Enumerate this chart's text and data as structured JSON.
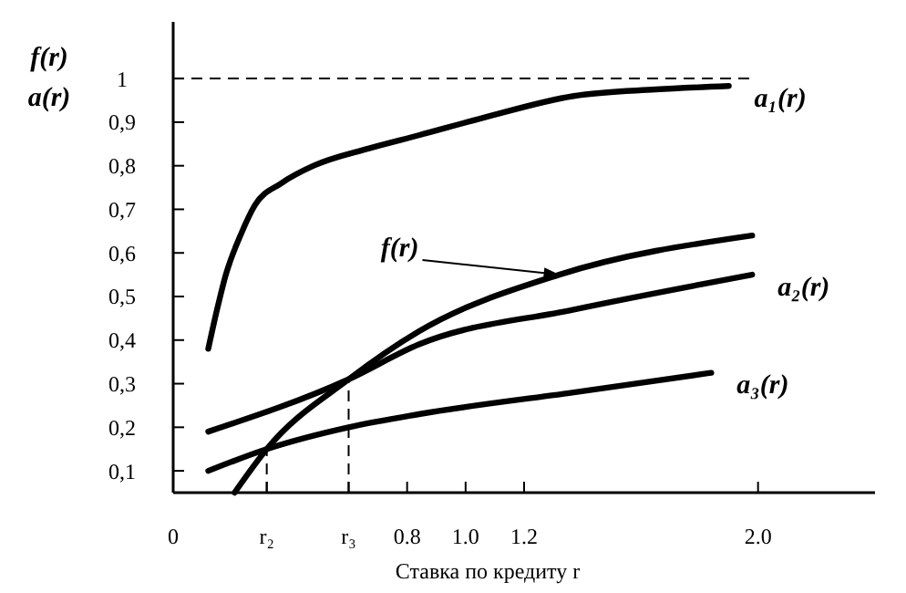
{
  "chart_data": {
    "type": "line",
    "xlabel": "Ставка по кредиту r",
    "ylabel": "f(r)\na(r)",
    "xlim": [
      0,
      2.4
    ],
    "ylim": [
      0.05,
      1.13
    ],
    "xticks": [
      0,
      {
        "value": 0.32,
        "label": "r₂"
      },
      {
        "value": 0.6,
        "label": "r₃"
      },
      0.8,
      {
        "value": 1,
        "label": "1.0"
      },
      1.2,
      {
        "value": 2,
        "label": "2.0"
      }
    ],
    "yticks": [
      {
        "value": 0.1,
        "label": "0,1"
      },
      {
        "value": 0.2,
        "label": "0,2"
      },
      {
        "value": 0.3,
        "label": "0,3"
      },
      {
        "value": 0.4,
        "label": "0,4"
      },
      {
        "value": 0.5,
        "label": "0,5"
      },
      {
        "value": 0.6,
        "label": "0,6"
      },
      {
        "value": 0.7,
        "label": "0,7"
      },
      {
        "value": 0.8,
        "label": "0,8"
      },
      {
        "value": 0.9,
        "label": "0,9"
      },
      1
    ],
    "grid": false,
    "line_style": "solid",
    "marker": "none",
    "ref_lines": [
      {
        "axis": "y",
        "value": 1,
        "line_style": "dashed"
      },
      {
        "axis": "x",
        "value": 0.32,
        "line_style": "dashed"
      },
      {
        "axis": "x",
        "value": 0.6,
        "line_style": "dashed"
      }
    ],
    "annotations": [
      {
        "text": "f(r)",
        "x": 1.32,
        "y": 0.55
      }
    ],
    "series": [
      {
        "name": "a₁(r)",
        "color": "#000000",
        "x": [
          0.12,
          0.15,
          0.18,
          0.23,
          0.28,
          0.37,
          0.48,
          0.67,
          0.84,
          1.06,
          1.37,
          1.65,
          1.9
        ],
        "values": [
          0.38,
          0.47,
          0.55,
          0.64,
          0.71,
          0.76,
          0.8,
          0.84,
          0.87,
          0.91,
          0.96,
          0.975,
          0.983
        ]
      },
      {
        "color": "#000000",
        "x": [
          0.21,
          0.32,
          0.6,
          0.84,
          1.32,
          1.98
        ],
        "values": [
          0.05,
          0.15,
          0.31,
          0.42,
          0.55,
          0.64
        ]
      },
      {
        "name": "a₂(r)",
        "color": "#000000",
        "x": [
          0.12,
          0.6,
          0.84,
          1.37,
          1.98
        ],
        "values": [
          0.19,
          0.31,
          0.39,
          0.47,
          0.55
        ]
      },
      {
        "name": "a₃(r)",
        "color": "#000000",
        "x": [
          0.12,
          0.32,
          0.6,
          0.84,
          1.37,
          1.84
        ],
        "values": [
          0.1,
          0.15,
          0.2,
          0.23,
          0.28,
          0.325
        ]
      }
    ]
  }
}
